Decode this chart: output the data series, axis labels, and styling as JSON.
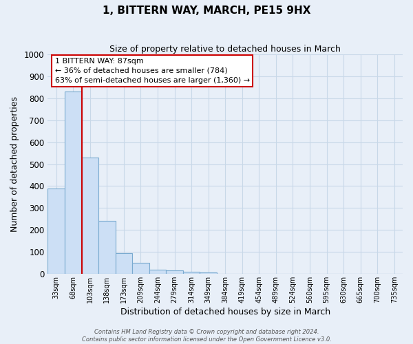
{
  "title": "1, BITTERN WAY, MARCH, PE15 9HX",
  "subtitle": "Size of property relative to detached houses in March",
  "xlabel": "Distribution of detached houses by size in March",
  "ylabel": "Number of detached properties",
  "bar_labels": [
    "33sqm",
    "68sqm",
    "103sqm",
    "138sqm",
    "173sqm",
    "209sqm",
    "244sqm",
    "279sqm",
    "314sqm",
    "349sqm",
    "384sqm",
    "419sqm",
    "454sqm",
    "489sqm",
    "524sqm",
    "560sqm",
    "595sqm",
    "630sqm",
    "665sqm",
    "700sqm",
    "735sqm"
  ],
  "bar_values": [
    390,
    830,
    530,
    240,
    95,
    50,
    18,
    15,
    10,
    7,
    0,
    0,
    0,
    0,
    0,
    0,
    0,
    0,
    0,
    0,
    0
  ],
  "bar_color": "#ccdff5",
  "bar_edge_color": "#7aaad0",
  "marker_line_color": "#cc0000",
  "annotation_line1": "1 BITTERN WAY: 87sqm",
  "annotation_line2": "← 36% of detached houses are smaller (784)",
  "annotation_line3": "63% of semi-detached houses are larger (1,360) →",
  "annotation_box_color": "#ffffff",
  "annotation_box_edge": "#cc0000",
  "ylim": [
    0,
    1000
  ],
  "yticks": [
    0,
    100,
    200,
    300,
    400,
    500,
    600,
    700,
    800,
    900,
    1000
  ],
  "grid_color": "#c8d8e8",
  "background_color": "#e8eff8",
  "footer_line1": "Contains HM Land Registry data © Crown copyright and database right 2024.",
  "footer_line2": "Contains public sector information licensed under the Open Government Licence v3.0."
}
